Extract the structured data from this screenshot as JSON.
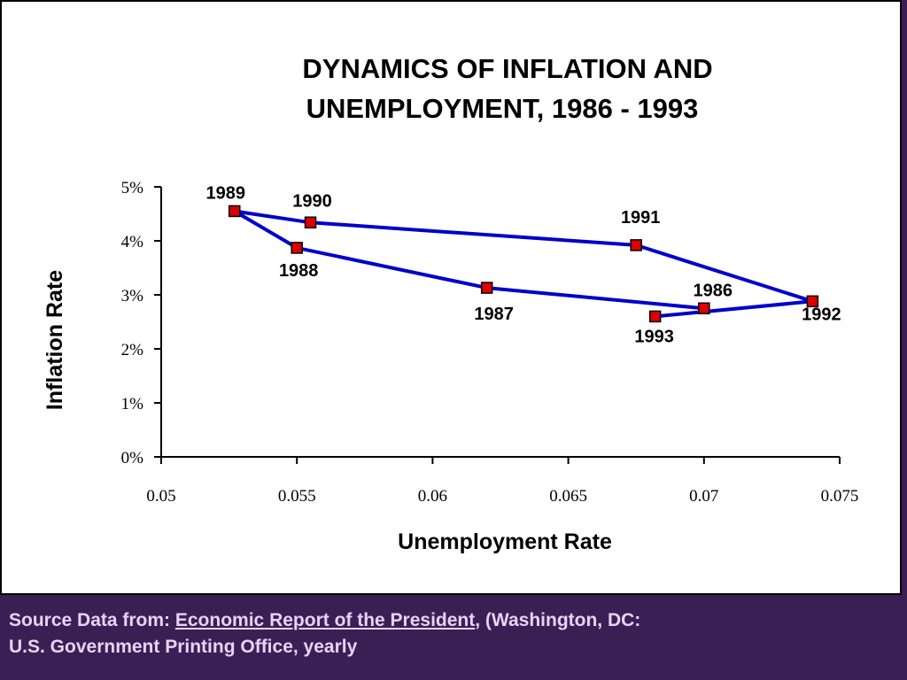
{
  "colors": {
    "background": "#3a1f55",
    "panel": "#ffffff",
    "line": "#0000cc",
    "marker_fill": "#dd0000",
    "marker_border": "#000000",
    "footer_text": "#e7d3f7"
  },
  "footer": {
    "prefix": "Source Data from: ",
    "publication": "Economic Report of the President",
    "suffix": ", (Washington, DC:",
    "line2": "U.S. Government Printing Office, yearly"
  },
  "chart_data": {
    "type": "line",
    "title": [
      "DYNAMICS OF INFLATION AND",
      "UNEMPLOYMENT, 1986 - 1993"
    ],
    "xlabel": "Unemployment Rate",
    "ylabel": "Inflation Rate",
    "xlim": [
      0.05,
      0.075
    ],
    "ylim": [
      0,
      0.05
    ],
    "x_ticks": [
      {
        "value": 0.05,
        "label": "0.05"
      },
      {
        "value": 0.055,
        "label": "0.055"
      },
      {
        "value": 0.06,
        "label": "0.06"
      },
      {
        "value": 0.065,
        "label": "0.065"
      },
      {
        "value": 0.07,
        "label": "0.07"
      },
      {
        "value": 0.075,
        "label": "0.075"
      }
    ],
    "y_ticks": [
      {
        "value": 0,
        "label": "0%"
      },
      {
        "value": 0.01,
        "label": "1%"
      },
      {
        "value": 0.02,
        "label": "2%"
      },
      {
        "value": 0.03,
        "label": "3%"
      },
      {
        "value": 0.04,
        "label": "4%"
      },
      {
        "value": 0.05,
        "label": "5%"
      }
    ],
    "grid": false,
    "legend": "none",
    "points": [
      {
        "label": "1986",
        "x": 0.07,
        "y": 0.0275
      },
      {
        "label": "1987",
        "x": 0.062,
        "y": 0.0313
      },
      {
        "label": "1988",
        "x": 0.055,
        "y": 0.0387
      },
      {
        "label": "1989",
        "x": 0.0527,
        "y": 0.0455
      },
      {
        "label": "1990",
        "x": 0.0555,
        "y": 0.0434
      },
      {
        "label": "1991",
        "x": 0.0675,
        "y": 0.0392
      },
      {
        "label": "1992",
        "x": 0.074,
        "y": 0.0288
      },
      {
        "label": "1993",
        "x": 0.0682,
        "y": 0.026
      }
    ]
  }
}
